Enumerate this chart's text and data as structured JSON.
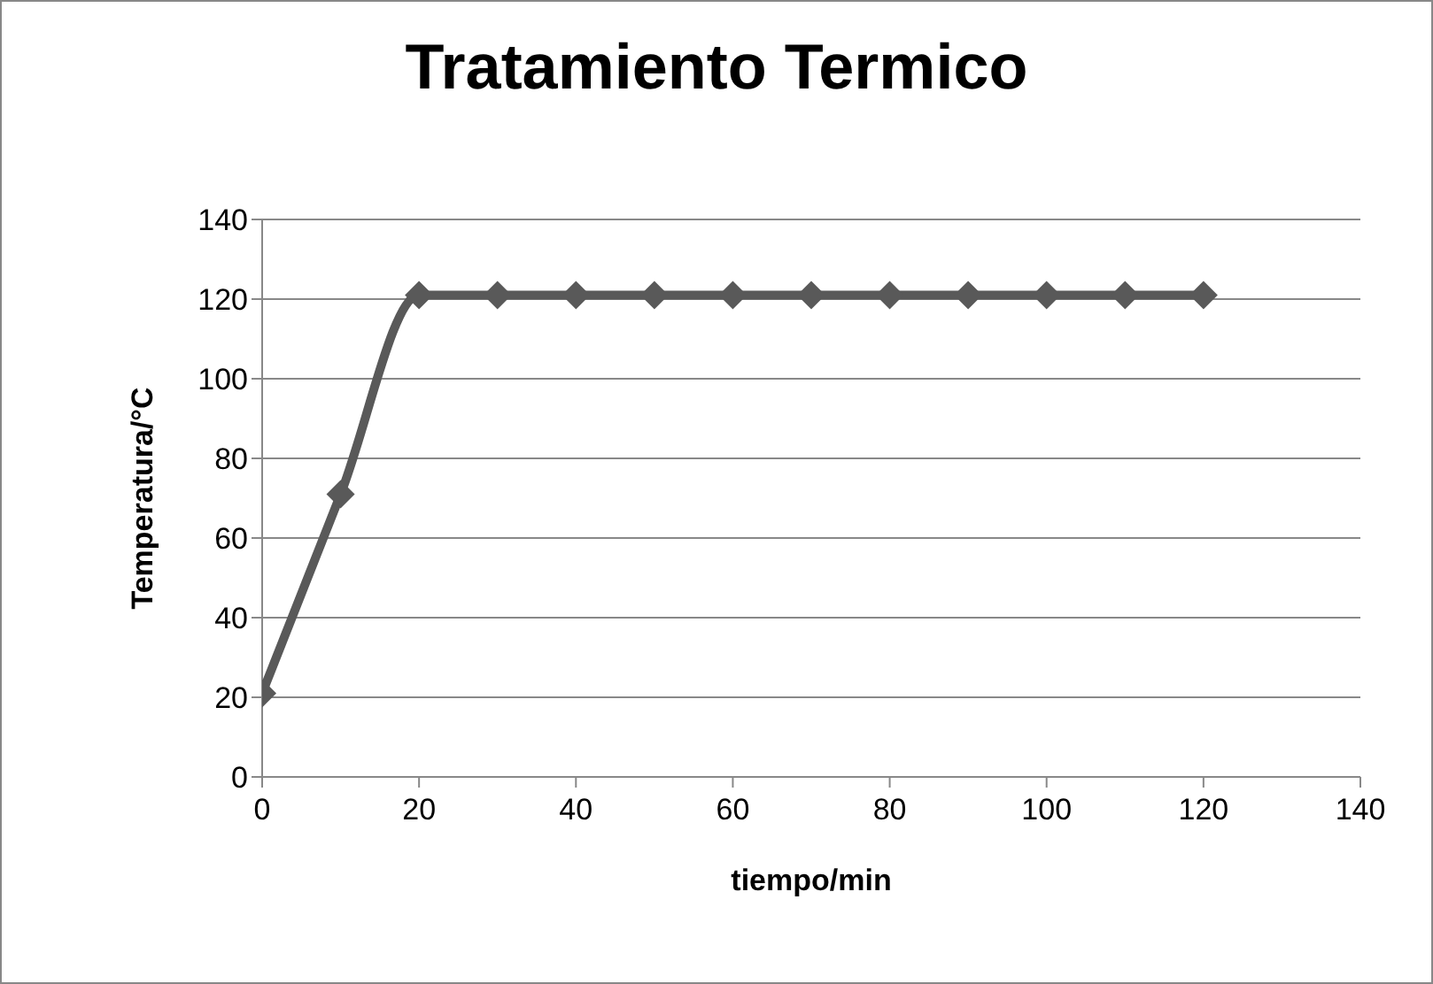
{
  "chart_data": {
    "type": "line",
    "title": "Tratamiento Termico",
    "xlabel": "tiempo/min",
    "ylabel": "Temperatura/°C",
    "x": [
      0,
      10,
      20,
      30,
      40,
      50,
      60,
      70,
      80,
      90,
      100,
      110,
      120
    ],
    "series": [
      {
        "color": "#595959",
        "values": [
          21,
          71,
          121,
          121,
          121,
          121,
          121,
          121,
          121,
          121,
          121,
          121,
          121
        ]
      }
    ],
    "xlim": [
      0,
      140
    ],
    "xticks": [
      0,
      20,
      40,
      60,
      80,
      100,
      120,
      140
    ],
    "ylim": [
      0,
      140
    ],
    "yticks": [
      0,
      20,
      40,
      60,
      80,
      100,
      120,
      140
    ],
    "grid": "y",
    "marker": "diamond",
    "line_style": "solid"
  }
}
